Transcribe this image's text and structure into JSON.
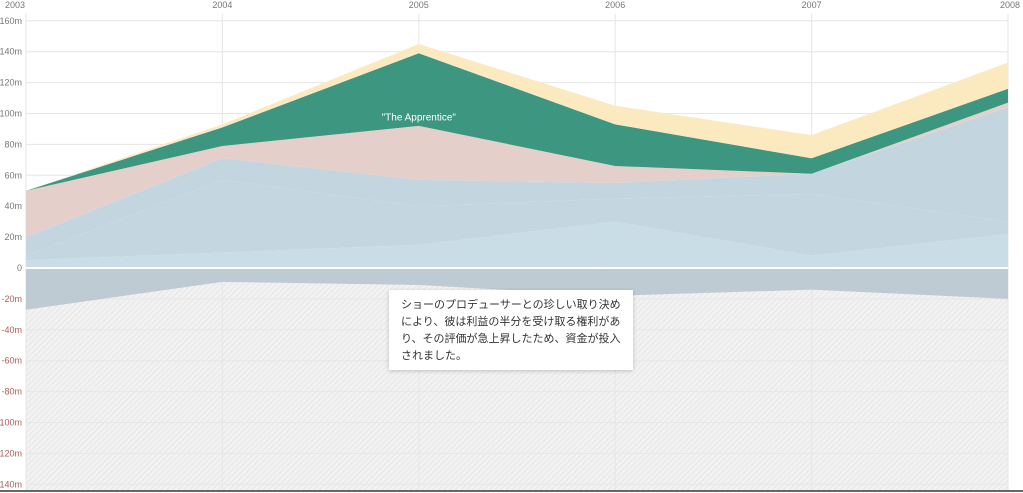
{
  "chart_data": {
    "type": "area",
    "stacked": true,
    "x": [
      2003,
      2004,
      2005,
      2006,
      2007,
      2008
    ],
    "ylim": [
      -140,
      160
    ],
    "y_ticks": [
      "160m",
      "140m",
      "120m",
      "100m",
      "80m",
      "60m",
      "40m",
      "20m",
      "0",
      "-20m",
      "-40m",
      "-60m",
      "-80m",
      "-100m",
      "-120m",
      "-140m"
    ],
    "y_tick_values": [
      160,
      140,
      120,
      100,
      80,
      60,
      40,
      20,
      0,
      -20,
      -40,
      -60,
      -80,
      -100,
      -120,
      -140
    ],
    "grid": true,
    "series": [
      {
        "values": [
          5,
          10,
          15,
          30,
          8,
          22
        ],
        "color": "#c9dde7"
      },
      {
        "values": [
          3,
          47,
          25,
          15,
          40,
          8
        ],
        "color": "#c4d7e1"
      },
      {
        "values": [
          12,
          14,
          17,
          10,
          13,
          74
        ],
        "color": "#c3d5df"
      },
      {
        "values": [
          30,
          8,
          35,
          11,
          0,
          3
        ],
        "color": "#e5cfcb"
      },
      {
        "values": [
          0,
          12,
          47,
          27,
          10,
          9
        ],
        "color": "#3c9680"
      },
      {
        "values": [
          0,
          2,
          6,
          12,
          15,
          17
        ],
        "color": "#fbeac0"
      }
    ],
    "negative_series": {
      "values": [
        -27,
        -9,
        -11,
        -18,
        -14,
        -20
      ],
      "color": "#b8c6cf"
    },
    "annotations": [
      {
        "label": "\"The Apprentice\"",
        "x": 2005,
        "y": 102
      }
    ]
  },
  "note": "ショーのプロデューサーとの珍しい取り決めにより、彼は利益の半分を受け取る権利があり、その評価が急上昇したため、資金が投入されました。"
}
